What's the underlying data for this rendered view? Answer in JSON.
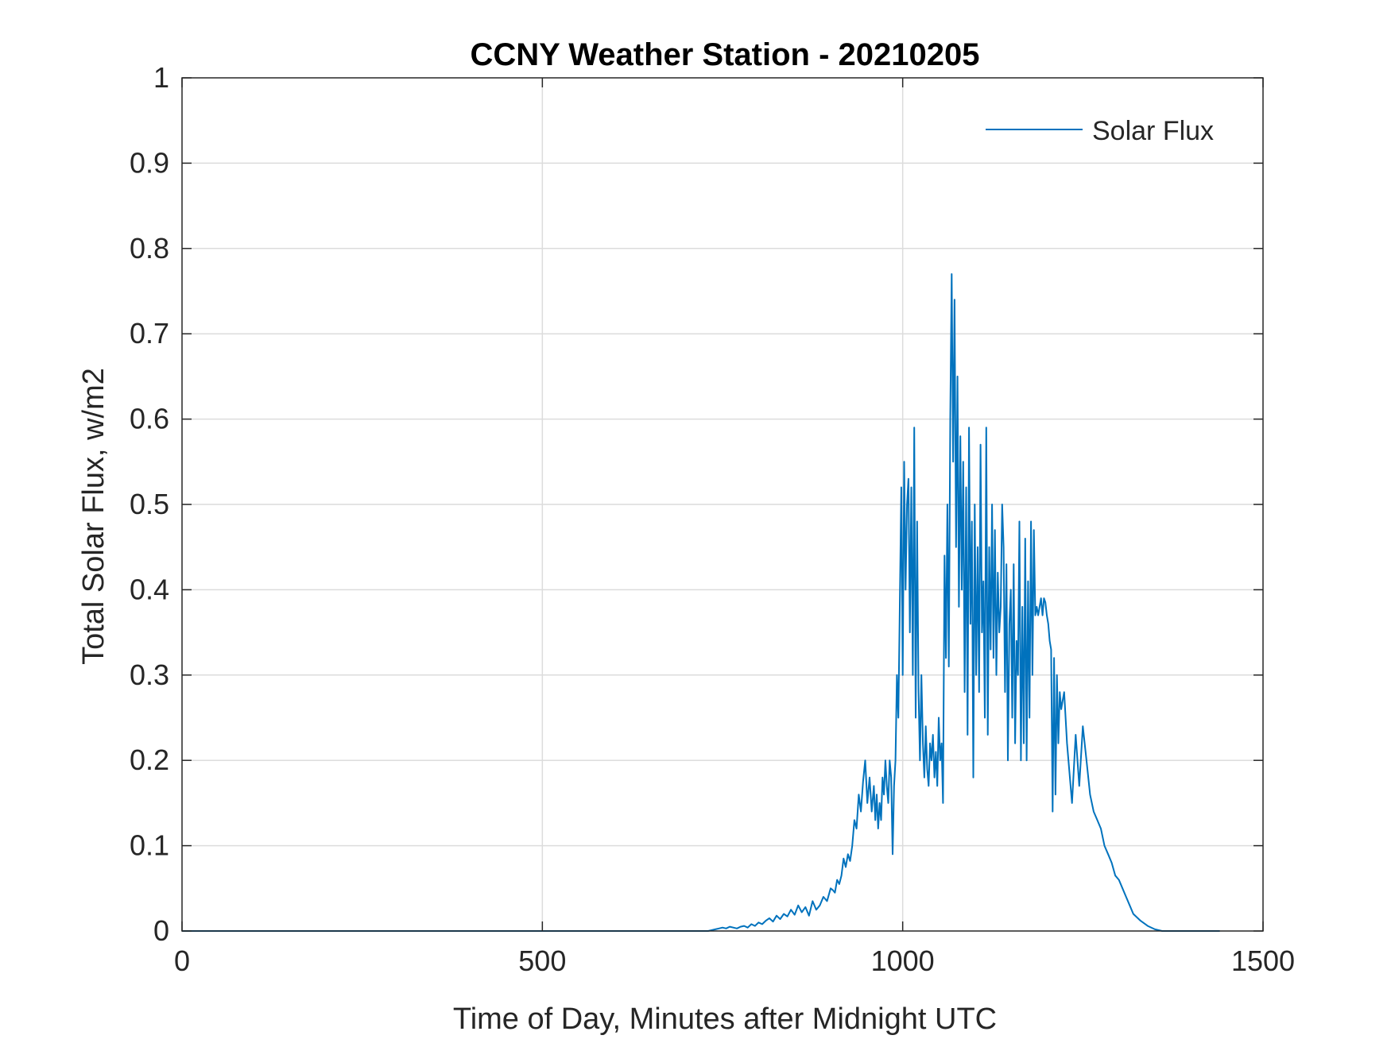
{
  "chart_data": {
    "type": "line",
    "title": "CCNY Weather Station - 20210205",
    "xlabel": "Time of Day, Minutes after Midnight UTC",
    "ylabel": "Total Solar Flux, w/m2",
    "xlim": [
      0,
      1500
    ],
    "ylim": [
      0,
      1
    ],
    "xticks": [
      0,
      500,
      1000,
      1500
    ],
    "yticks": [
      0,
      0.1,
      0.2,
      0.3,
      0.4,
      0.5,
      0.6,
      0.7,
      0.8,
      0.9,
      1
    ],
    "grid": true,
    "legend_position": "top-right",
    "series": [
      {
        "name": "Solar Flux",
        "color": "#0072BD",
        "x": [
          0,
          100,
          200,
          300,
          400,
          500,
          600,
          700,
          730,
          740,
          745,
          750,
          755,
          760,
          765,
          770,
          775,
          780,
          785,
          790,
          795,
          800,
          805,
          810,
          815,
          820,
          825,
          830,
          835,
          840,
          845,
          850,
          855,
          860,
          865,
          870,
          875,
          880,
          885,
          890,
          895,
          900,
          903,
          906,
          909,
          912,
          915,
          918,
          921,
          924,
          927,
          930,
          933,
          936,
          939,
          942,
          945,
          948,
          951,
          954,
          957,
          960,
          962,
          964,
          966,
          968,
          970,
          972,
          974,
          976,
          978,
          980,
          982,
          984,
          986,
          988,
          990,
          992,
          994,
          996,
          998,
          1000,
          1002,
          1004,
          1006,
          1008,
          1010,
          1012,
          1014,
          1016,
          1018,
          1020,
          1022,
          1024,
          1026,
          1028,
          1030,
          1032,
          1034,
          1036,
          1038,
          1040,
          1042,
          1044,
          1046,
          1048,
          1050,
          1052,
          1054,
          1056,
          1058,
          1060,
          1062,
          1064,
          1066,
          1068,
          1070,
          1072,
          1074,
          1076,
          1078,
          1080,
          1082,
          1084,
          1086,
          1088,
          1090,
          1092,
          1094,
          1096,
          1098,
          1100,
          1102,
          1104,
          1106,
          1108,
          1110,
          1112,
          1114,
          1116,
          1118,
          1120,
          1122,
          1124,
          1126,
          1128,
          1130,
          1132,
          1134,
          1136,
          1138,
          1140,
          1142,
          1144,
          1146,
          1148,
          1150,
          1152,
          1154,
          1156,
          1158,
          1160,
          1162,
          1164,
          1166,
          1168,
          1170,
          1172,
          1174,
          1176,
          1178,
          1180,
          1182,
          1184,
          1186,
          1188,
          1190,
          1192,
          1194,
          1196,
          1198,
          1200,
          1202,
          1204,
          1206,
          1208,
          1210,
          1212,
          1214,
          1216,
          1218,
          1220,
          1222,
          1224,
          1226,
          1228,
          1230,
          1235,
          1240,
          1245,
          1250,
          1255,
          1260,
          1265,
          1270,
          1275,
          1280,
          1285,
          1290,
          1295,
          1300,
          1305,
          1310,
          1315,
          1320,
          1330,
          1340,
          1350,
          1360,
          1400,
          1440
        ],
        "y": [
          0,
          0,
          0,
          0,
          0,
          0,
          0,
          0,
          0,
          0.002,
          0.003,
          0.004,
          0.003,
          0.005,
          0.004,
          0.003,
          0.005,
          0.006,
          0.004,
          0.008,
          0.006,
          0.01,
          0.008,
          0.012,
          0.015,
          0.011,
          0.018,
          0.014,
          0.02,
          0.017,
          0.025,
          0.019,
          0.03,
          0.022,
          0.028,
          0.018,
          0.035,
          0.025,
          0.03,
          0.04,
          0.035,
          0.05,
          0.048,
          0.045,
          0.06,
          0.055,
          0.065,
          0.085,
          0.075,
          0.09,
          0.082,
          0.1,
          0.13,
          0.12,
          0.16,
          0.14,
          0.175,
          0.2,
          0.15,
          0.18,
          0.14,
          0.17,
          0.13,
          0.16,
          0.12,
          0.15,
          0.13,
          0.18,
          0.16,
          0.2,
          0.17,
          0.15,
          0.2,
          0.18,
          0.09,
          0.17,
          0.2,
          0.3,
          0.25,
          0.38,
          0.52,
          0.3,
          0.55,
          0.4,
          0.5,
          0.53,
          0.35,
          0.52,
          0.3,
          0.59,
          0.25,
          0.48,
          0.28,
          0.2,
          0.3,
          0.22,
          0.18,
          0.24,
          0.19,
          0.17,
          0.22,
          0.2,
          0.23,
          0.18,
          0.21,
          0.17,
          0.25,
          0.2,
          0.22,
          0.15,
          0.44,
          0.32,
          0.5,
          0.31,
          0.6,
          0.77,
          0.55,
          0.74,
          0.45,
          0.65,
          0.38,
          0.58,
          0.4,
          0.55,
          0.28,
          0.52,
          0.23,
          0.59,
          0.36,
          0.48,
          0.18,
          0.5,
          0.3,
          0.45,
          0.28,
          0.57,
          0.35,
          0.41,
          0.25,
          0.59,
          0.23,
          0.45,
          0.33,
          0.5,
          0.32,
          0.47,
          0.3,
          0.42,
          0.35,
          0.38,
          0.5,
          0.45,
          0.28,
          0.43,
          0.2,
          0.36,
          0.4,
          0.25,
          0.43,
          0.22,
          0.34,
          0.3,
          0.48,
          0.2,
          0.38,
          0.22,
          0.46,
          0.2,
          0.41,
          0.25,
          0.48,
          0.3,
          0.47,
          0.37,
          0.38,
          0.37,
          0.38,
          0.39,
          0.37,
          0.39,
          0.385,
          0.37,
          0.36,
          0.34,
          0.33,
          0.14,
          0.32,
          0.16,
          0.3,
          0.22,
          0.28,
          0.26,
          0.27,
          0.28,
          0.25,
          0.22,
          0.2,
          0.15,
          0.23,
          0.17,
          0.24,
          0.2,
          0.16,
          0.14,
          0.13,
          0.12,
          0.1,
          0.09,
          0.08,
          0.065,
          0.06,
          0.05,
          0.04,
          0.03,
          0.02,
          0.012,
          0.006,
          0.002,
          0,
          0,
          0
        ]
      }
    ]
  }
}
